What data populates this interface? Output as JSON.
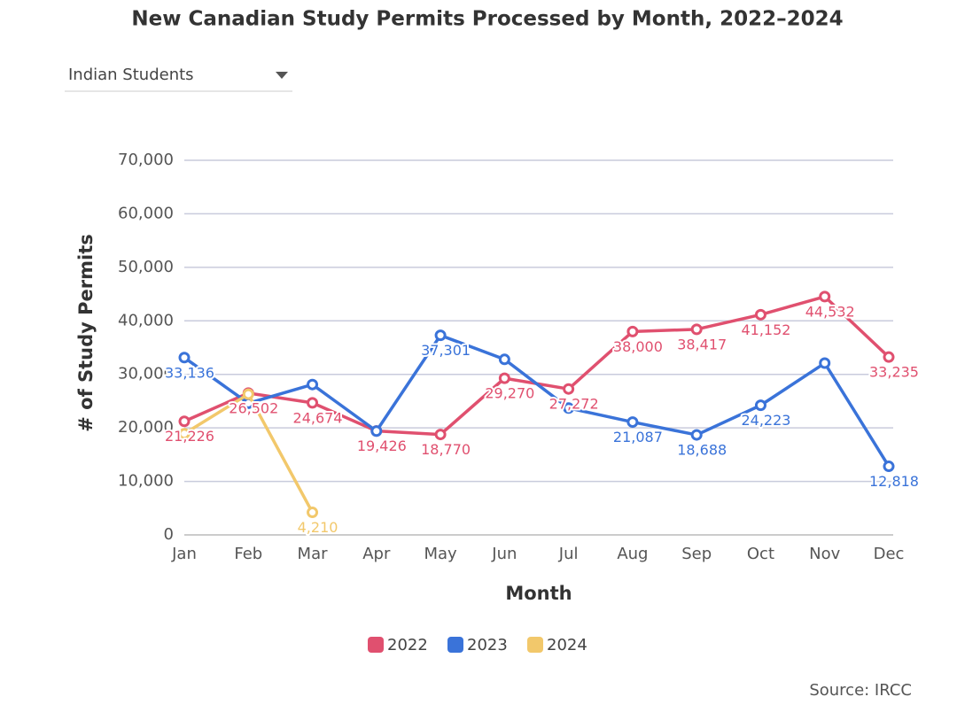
{
  "chart_data": {
    "type": "line",
    "title": "New Canadian Study Permits Processed by Month, 2022–2024",
    "dropdown": "Indian Students",
    "x_label": "Month",
    "y_label": "# of Study Permits",
    "source": "Source: IRCC",
    "categories": [
      "Jan",
      "Feb",
      "Mar",
      "Apr",
      "May",
      "Jun",
      "Jul",
      "Aug",
      "Sep",
      "Oct",
      "Nov",
      "Dec"
    ],
    "series": [
      {
        "name": "2022",
        "color": "#e0506f",
        "values": [
          21226,
          26502,
          24674,
          19426,
          18770,
          29270,
          27272,
          38000,
          38417,
          41152,
          44532,
          33235
        ],
        "value_labels": [
          "21,226",
          "26,502",
          "24,674",
          "19,426",
          "18,770",
          "29,270",
          "27,272",
          "38,000",
          "38,417",
          "41,152",
          "44,532",
          "33,235"
        ]
      },
      {
        "name": "2023",
        "color": "#3a73d9",
        "values": [
          33136,
          24600,
          28100,
          19400,
          37301,
          32800,
          23700,
          21087,
          18688,
          24223,
          32100,
          12818
        ],
        "value_labels": [
          "33,136",
          null,
          null,
          null,
          "37,301",
          null,
          null,
          "21,087",
          "18,688",
          "24,223",
          null,
          "12,818"
        ]
      },
      {
        "name": "2024",
        "color": "#f2c86b",
        "values": [
          18900,
          26300,
          4210,
          null,
          null,
          null,
          null,
          null,
          null,
          null,
          null,
          null
        ],
        "value_labels": [
          null,
          null,
          "4,210",
          null,
          null,
          null,
          null,
          null,
          null,
          null,
          null,
          null
        ]
      }
    ],
    "ylim": [
      0,
      70000
    ],
    "yticks": [
      0,
      {
        "value": 10000,
        "label": "10,000"
      },
      {
        "value": 20000,
        "label": "20,000"
      },
      {
        "value": 30000,
        "label": "30,000"
      },
      {
        "value": 40000,
        "label": "40,000"
      },
      {
        "value": 50000,
        "label": "50,000"
      },
      {
        "value": 60000,
        "label": "60,000"
      },
      {
        "value": 70000,
        "label": "70,000"
      }
    ],
    "grid": true,
    "legend": "bottom"
  }
}
